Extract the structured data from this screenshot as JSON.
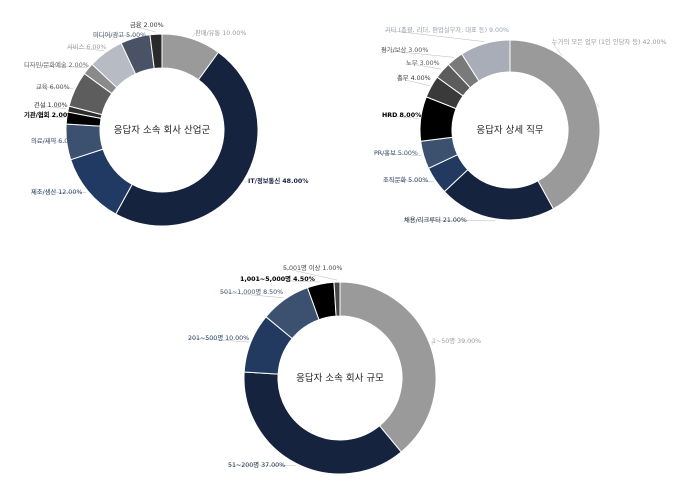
{
  "chart_data": [
    {
      "type": "pie",
      "title": "응답자 소속 회사 산업군",
      "slices": [
        {
          "label": "판매/유통",
          "value": 10.0,
          "text": "판매/유통 10.00%",
          "color": "#9a9a9a",
          "bold": false,
          "text_color": "#9a9a9a"
        },
        {
          "label": "IT/정보통신",
          "value": 48.0,
          "text": "IT/정보통신 48.00%",
          "color": "#16233f",
          "bold": true,
          "text_color": "#16233f"
        },
        {
          "label": "제조/생산",
          "value": 12.0,
          "text": "제조/생산 12.00%",
          "color": "#213a63",
          "bold": false,
          "text_color": "#213a63"
        },
        {
          "label": "의료/제약",
          "value": 6.0,
          "text": "의료/제약 6.00%",
          "color": "#3c5070",
          "bold": false,
          "text_color": "#3c5070"
        },
        {
          "label": "기관/협회",
          "value": 2.0,
          "text": "기관/협회 2.00%",
          "color": "#000000",
          "bold": true,
          "text_color": "#000000"
        },
        {
          "label": "건설",
          "value": 1.0,
          "text": "건설 1.00%",
          "color": "#2e2e2e",
          "bold": false,
          "text_color": "#333333"
        },
        {
          "label": "교육",
          "value": 6.0,
          "text": "교육 6.00%",
          "color": "#5d5d5d",
          "bold": false,
          "text_color": "#555555"
        },
        {
          "label": "디자인/문화예술",
          "value": 2.0,
          "text": "디자인/문화예술 2.00%",
          "color": "#8a8a8a",
          "bold": false,
          "text_color": "#666666"
        },
        {
          "label": "서비스",
          "value": 6.0,
          "text": "서비스 6.00%",
          "color": "#b6bbc4",
          "bold": false,
          "text_color": "#9aa0aa"
        },
        {
          "label": "미디어/광고",
          "value": 5.0,
          "text": "미디어/광고 5.00%",
          "color": "#4a5366",
          "bold": false,
          "text_color": "#4a5366"
        },
        {
          "label": "금융",
          "value": 2.0,
          "text": "금융 2.00%",
          "color": "#2a2a2a",
          "bold": false,
          "text_color": "#333333"
        }
      ]
    },
    {
      "type": "pie",
      "title": "응답자 상세 직무",
      "slices": [
        {
          "label": "누가의 모든 업무 (1인 인담자 등)",
          "value": 42.0,
          "text": "누가의 모든 업무 (1인 인담자 등) 42.00%",
          "color": "#9a9a9a",
          "bold": false,
          "text_color": "#9a9a9a"
        },
        {
          "label": "채용/리크루터",
          "value": 21.0,
          "text": "채용/리크루터 21.00%",
          "color": "#16233f",
          "bold": false,
          "text_color": "#16233f"
        },
        {
          "label": "조직문화",
          "value": 5.0,
          "text": "조직문화 5.00%",
          "color": "#233a60",
          "bold": false,
          "text_color": "#233a60"
        },
        {
          "label": "PR/홍보",
          "value": 5.0,
          "text": "PR/홍보 5.00%",
          "color": "#3c5070",
          "bold": false,
          "text_color": "#3c5070"
        },
        {
          "label": "HRD",
          "value": 8.0,
          "text": "HRD 8.00%",
          "color": "#000000",
          "bold": true,
          "text_color": "#000000"
        },
        {
          "label": "총무",
          "value": 4.0,
          "text": "총무 4.00%",
          "color": "#3a3a3a",
          "bold": false,
          "text_color": "#333333"
        },
        {
          "label": "노무",
          "value": 3.0,
          "text": "노무 3.00%",
          "color": "#5d5d5d",
          "bold": false,
          "text_color": "#555555"
        },
        {
          "label": "평가/보상",
          "value": 3.0,
          "text": "평가/보상 3.00%",
          "color": "#7a7a7a",
          "bold": false,
          "text_color": "#555555"
        },
        {
          "label": "기타 (총괄, 리더, 편업실무자, 대표 등)",
          "value": 9.0,
          "text": "기타 (총괄, 리더, 편업실무자, 대표 등) 9.00%",
          "color": "#a8adb8",
          "bold": false,
          "text_color": "#9aa0aa"
        }
      ]
    },
    {
      "type": "pie",
      "title": "응답자 소속 회사 규모",
      "slices": [
        {
          "label": "1~50명",
          "value": 39.0,
          "text": "1~50명 39.00%",
          "color": "#9a9a9a",
          "bold": false,
          "text_color": "#9a9a9a"
        },
        {
          "label": "51~200명",
          "value": 37.0,
          "text": "51~200명 37.00%",
          "color": "#16233f",
          "bold": false,
          "text_color": "#16233f"
        },
        {
          "label": "201~500명",
          "value": 10.0,
          "text": "201~500명 10.00%",
          "color": "#233a60",
          "bold": false,
          "text_color": "#233a60"
        },
        {
          "label": "501~1,000명",
          "value": 8.5,
          "text": "501~1,000명 8.50%",
          "color": "#3c5070",
          "bold": false,
          "text_color": "#3c5070"
        },
        {
          "label": "1,001~5,000명",
          "value": 4.5,
          "text": "1,001~5,000명 4.50%",
          "color": "#000000",
          "bold": true,
          "text_color": "#000000"
        },
        {
          "label": "5,001명 이상",
          "value": 1.0,
          "text": "5,001명 이상 1.00%",
          "color": "#4a4a4a",
          "bold": false,
          "text_color": "#444444"
        }
      ]
    }
  ]
}
